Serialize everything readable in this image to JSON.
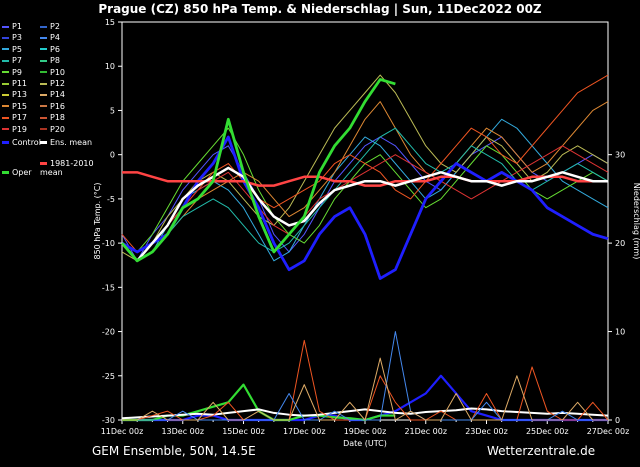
{
  "title": "Prague  (CZ)  850 hPa Temp. & Niederschlag | Sun, 11Dec2022 00Z",
  "footer": {
    "left": "GEM Ensemble, 50N, 14.5E",
    "right": "Wetterzentrale.de"
  },
  "chart_data": {
    "type": "line",
    "title": "Prague  (CZ)  850 hPa Temp. & Niederschlag | Sun, 11Dec2022 00Z",
    "xlabel": "Date (UTC)",
    "ylabel": "850 hPa Temp. (°C)",
    "y2label": "Niederschlag (mm)",
    "ylim": [
      -30,
      15
    ],
    "y2lim": [
      0,
      45
    ],
    "yticks": [
      15,
      10,
      5,
      0,
      -5,
      -10,
      -15,
      -20,
      -25,
      -30
    ],
    "y2ticks": [
      30,
      20,
      10,
      0
    ],
    "xticks": [
      "11Dec 00z",
      "13Dec 00z",
      "15Dec 00z",
      "17Dec 00z",
      "19Dec 00z",
      "21Dec 00z",
      "23Dec 00z",
      "25Dec 00z",
      "27Dec 00z"
    ],
    "x_hours": [
      0,
      12,
      24,
      36,
      48,
      60,
      72,
      84,
      96,
      108,
      120,
      132,
      144,
      156,
      168,
      180,
      192,
      204,
      216,
      228,
      240,
      252,
      264,
      276,
      288,
      300,
      312,
      324,
      336,
      348,
      360,
      372,
      384
    ],
    "legend": [
      {
        "label": "P1",
        "color": "#5555ff"
      },
      {
        "label": "P2",
        "color": "#3366cc"
      },
      {
        "label": "P3",
        "color": "#3344dd"
      },
      {
        "label": "P4",
        "color": "#4488ee"
      },
      {
        "label": "P5",
        "color": "#33aadd"
      },
      {
        "label": "P6",
        "color": "#22cccc"
      },
      {
        "label": "P7",
        "color": "#22bbaa"
      },
      {
        "label": "P8",
        "color": "#33cc88"
      },
      {
        "label": "P9",
        "color": "#66dd33"
      },
      {
        "label": "P10",
        "color": "#33bb33"
      },
      {
        "label": "P11",
        "color": "#99cc33"
      },
      {
        "label": "P12",
        "color": "#bbbb55"
      },
      {
        "label": "P13",
        "color": "#cccc33"
      },
      {
        "label": "P14",
        "color": "#ddaa66"
      },
      {
        "label": "P15",
        "color": "#dd8833"
      },
      {
        "label": "P16",
        "color": "#cc7744"
      },
      {
        "label": "P17",
        "color": "#ee5522"
      },
      {
        "label": "P18",
        "color": "#cc5533"
      },
      {
        "label": "P19",
        "color": "#dd3333"
      },
      {
        "label": "P20",
        "color": "#aa3322"
      },
      {
        "label": "Control",
        "color": "#1f1fff"
      },
      {
        "label": "Ens. mean",
        "color": "#ffffff"
      },
      {
        "label": "1981-2010 mean",
        "color": "#ff4444"
      },
      {
        "label": "Oper",
        "color": "#33dd33"
      }
    ],
    "series": [
      {
        "name": "Ens. mean",
        "color": "#ffffff",
        "values": [
          -10,
          -12,
          -10,
          -8,
          -5,
          -3.5,
          -2.5,
          -1.5,
          -2.5,
          -5,
          -7,
          -8,
          -7.5,
          -5.5,
          -4,
          -3.5,
          -3,
          -3,
          -3.5,
          -3,
          -2.5,
          -2,
          -2.5,
          -3,
          -3,
          -3.5,
          -3,
          -3,
          -2.5,
          -2,
          -2.5,
          -3,
          -3
        ]
      },
      {
        "name": "1981-2010 mean",
        "color": "#ff4444",
        "values": [
          -2,
          -2,
          -2.5,
          -3,
          -3,
          -3,
          -3,
          -3,
          -3,
          -3.5,
          -3.5,
          -3,
          -2.5,
          -2.5,
          -3,
          -3,
          -3.5,
          -3.5,
          -3,
          -3,
          -3,
          -2.5,
          -2.5,
          -3,
          -3,
          -3,
          -3,
          -2.5,
          -2.5,
          -2.5,
          -3,
          -3,
          -3
        ]
      },
      {
        "name": "Control",
        "color": "#1f1fff",
        "values": [
          -10,
          -11,
          -10,
          -9,
          -6,
          -3,
          -1,
          2,
          -3,
          -6,
          -10,
          -13,
          -12,
          -9,
          -7,
          -6,
          -9,
          -14,
          -13,
          -9,
          -5,
          -3,
          -1,
          -2,
          -3,
          -2,
          -3,
          -4,
          -6,
          -7,
          -8,
          -9,
          -9.5
        ]
      },
      {
        "name": "Oper",
        "color": "#33dd33",
        "values": [
          -10,
          -12,
          -11,
          -9,
          -6,
          -5,
          -3,
          4,
          -2,
          -7,
          -11,
          -9,
          -7,
          -2,
          1,
          3,
          6,
          8.5,
          8
        ]
      },
      {
        "name": "P1",
        "color": "#5555ff",
        "values": [
          -9,
          -12,
          -9,
          -7,
          -4,
          -2,
          0,
          1,
          -2,
          -5,
          -9,
          -11,
          -9,
          -6,
          -3,
          -1,
          1,
          2,
          1,
          -1,
          -3,
          -4,
          -2,
          0,
          1,
          2,
          0,
          -2,
          -3,
          -2,
          -1,
          0,
          -1
        ]
      },
      {
        "name": "P5",
        "color": "#33aadd",
        "values": [
          -10,
          -12,
          -11,
          -8,
          -5,
          -4,
          -3,
          -4,
          -6,
          -9,
          -12,
          -11,
          -8,
          -5,
          -2,
          0,
          2,
          1,
          -1,
          -3,
          -5,
          -4,
          -2,
          0,
          2,
          4,
          3,
          1,
          -1,
          -3,
          -4,
          -5,
          -6
        ]
      },
      {
        "name": "P9",
        "color": "#66dd33",
        "values": [
          -10,
          -11,
          -9,
          -6,
          -3,
          -1,
          1,
          3,
          0,
          -4,
          -7,
          -9,
          -10,
          -8,
          -5,
          -3,
          -1,
          0,
          -2,
          -4,
          -6,
          -5,
          -3,
          -1,
          1,
          0,
          -2,
          -4,
          -5,
          -4,
          -3,
          -2,
          -3
        ]
      },
      {
        "name": "P12",
        "color": "#bbbb55",
        "values": [
          -11,
          -12,
          -10,
          -7,
          -5,
          -3,
          -2,
          -3,
          -5,
          -7,
          -8,
          -6,
          -3,
          0,
          3,
          5,
          7,
          9,
          7,
          4,
          1,
          -1,
          -2,
          0,
          2,
          1,
          -1,
          -3,
          -2,
          0,
          1,
          0,
          -1
        ]
      },
      {
        "name": "P15",
        "color": "#dd8833",
        "values": [
          -10,
          -12,
          -11,
          -9,
          -7,
          -5,
          -4,
          -3,
          -2,
          -3,
          -5,
          -7,
          -6,
          -4,
          -2,
          1,
          4,
          6,
          3,
          0,
          -2,
          -3,
          -1,
          1,
          3,
          2,
          0,
          -2,
          -1,
          1,
          3,
          5,
          6
        ]
      },
      {
        "name": "P17",
        "color": "#ee5522",
        "values": [
          -9,
          -11,
          -10,
          -8,
          -6,
          -4,
          -2,
          -1,
          -3,
          -5,
          -6,
          -5,
          -4,
          -3,
          -1,
          0,
          -1,
          -2,
          -4,
          -5,
          -3,
          -1,
          1,
          3,
          2,
          0,
          -1,
          1,
          3,
          5,
          7,
          8,
          9
        ]
      },
      {
        "name": "P19",
        "color": "#dd3333",
        "values": [
          -10,
          -12,
          -10,
          -8,
          -6,
          -4,
          -3,
          -2,
          -4,
          -6,
          -8,
          -9,
          -7,
          -5,
          -4,
          -3,
          -2,
          -1,
          0,
          -1,
          -2,
          -3,
          -4,
          -5,
          -4,
          -3,
          -2,
          -1,
          0,
          1,
          0,
          -1,
          -2
        ]
      },
      {
        "name": "P7",
        "color": "#22bbaa",
        "values": [
          -10,
          -11,
          -10,
          -9,
          -7,
          -6,
          -5,
          -6,
          -8,
          -10,
          -11,
          -10,
          -8,
          -6,
          -4,
          -2,
          0,
          2,
          3,
          1,
          -1,
          -2,
          -1,
          1,
          0,
          -1,
          -3,
          -4,
          -3,
          -2,
          -1,
          -2,
          -3
        ]
      }
    ],
    "precip_series": [
      {
        "name": "Control",
        "color": "#1f1fff",
        "values": [
          0,
          0,
          0,
          0,
          0,
          0.5,
          0.5,
          0,
          0,
          0,
          0,
          0,
          0,
          0.5,
          0.5,
          0,
          0,
          0.5,
          1,
          2,
          3,
          5,
          3,
          1,
          0.5,
          0,
          0,
          0,
          0,
          0,
          0,
          0,
          0
        ]
      },
      {
        "name": "Oper",
        "color": "#33dd33",
        "values": [
          0,
          0,
          0,
          0.5,
          0.5,
          1,
          1.5,
          2,
          4,
          1,
          0,
          0,
          0.5,
          0.5,
          0.3,
          0.2,
          0,
          0.5,
          0.5
        ]
      },
      {
        "name": "Ens. mean",
        "color": "#ffffff",
        "values": [
          0.2,
          0.3,
          0.4,
          0.5,
          0.6,
          0.7,
          0.6,
          0.8,
          1,
          1.2,
          0.8,
          0.6,
          0.5,
          0.6,
          0.8,
          1,
          1.2,
          1,
          0.8,
          0.7,
          0.9,
          1,
          1.1,
          1.3,
          1.2,
          1,
          0.9,
          0.8,
          0.7,
          0.8,
          0.7,
          0.6,
          0.5
        ]
      },
      {
        "name": "P17",
        "color": "#ee5522",
        "values": [
          0,
          0,
          0.5,
          1,
          0,
          0,
          0.5,
          2,
          0,
          0,
          0,
          0,
          9,
          1,
          0,
          0,
          0,
          5,
          2,
          0,
          0,
          1,
          0,
          0,
          3,
          0,
          0,
          6,
          1,
          0,
          0,
          2,
          0
        ]
      },
      {
        "name": "P4",
        "color": "#4488ee",
        "values": [
          0,
          0,
          0,
          0,
          1,
          0,
          0,
          0,
          0,
          0,
          0,
          3,
          0,
          0,
          1,
          0,
          0,
          0,
          10,
          1,
          0,
          0,
          0,
          0,
          2,
          0,
          0,
          0,
          0,
          1,
          0,
          0,
          0
        ]
      },
      {
        "name": "P14",
        "color": "#ddaa66",
        "values": [
          0,
          0,
          1,
          0,
          0,
          0,
          2,
          0,
          0,
          1,
          0,
          0,
          4,
          0,
          0,
          2,
          0,
          7,
          0,
          1,
          0,
          0,
          3,
          0,
          0,
          0,
          5,
          0,
          0,
          0,
          2,
          0,
          0
        ]
      }
    ]
  }
}
